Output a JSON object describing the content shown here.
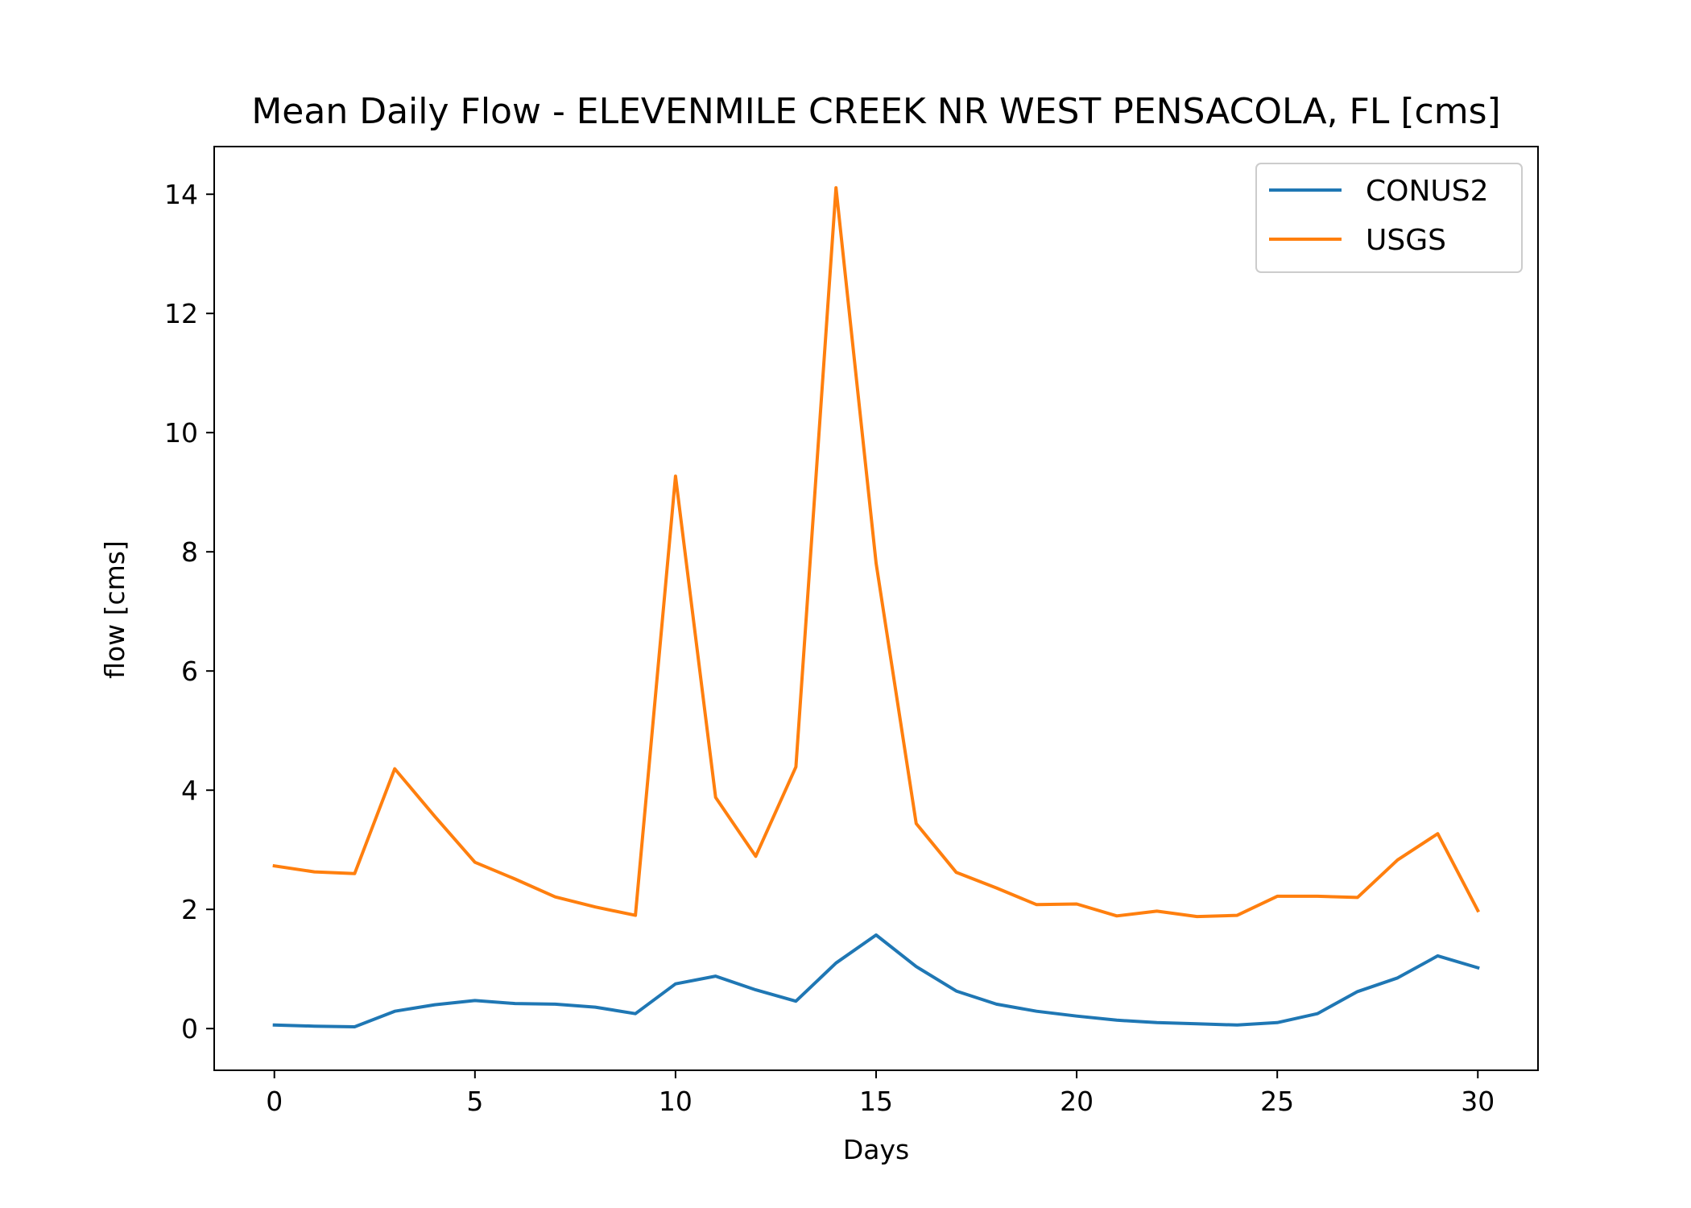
{
  "chart_data": {
    "type": "line",
    "title": "Mean Daily Flow - ELEVENMILE CREEK NR WEST PENSACOLA, FL [cms]",
    "xlabel": "Days",
    "ylabel": "flow [cms]",
    "xlim": [
      -1.5,
      31.5
    ],
    "ylim": [
      -0.7,
      14.8
    ],
    "x_ticks": [
      0,
      5,
      10,
      15,
      20,
      25,
      30
    ],
    "y_ticks": [
      0,
      2,
      4,
      6,
      8,
      10,
      12,
      14
    ],
    "x_tick_labels": [
      "0",
      "5",
      "10",
      "15",
      "20",
      "25",
      "30"
    ],
    "y_tick_labels": [
      "0",
      "2",
      "4",
      "6",
      "8",
      "10",
      "12",
      "14"
    ],
    "grid": false,
    "legend_position": "top-right",
    "x": [
      0,
      1,
      2,
      3,
      4,
      5,
      6,
      7,
      8,
      9,
      10,
      11,
      12,
      13,
      14,
      15,
      16,
      17,
      18,
      19,
      20,
      21,
      22,
      23,
      24,
      25,
      26,
      27,
      28,
      29,
      30
    ],
    "series": [
      {
        "name": "CONUS2",
        "color": "#1f77b4",
        "values": [
          0.06,
          0.04,
          0.03,
          0.29,
          0.4,
          0.47,
          0.42,
          0.41,
          0.36,
          0.25,
          0.75,
          0.88,
          0.65,
          0.46,
          1.1,
          1.57,
          1.04,
          0.63,
          0.41,
          0.29,
          0.21,
          0.14,
          0.1,
          0.08,
          0.06,
          0.1,
          0.25,
          0.62,
          0.85,
          1.22,
          1.02
        ]
      },
      {
        "name": "USGS",
        "color": "#ff7f0e",
        "values": [
          2.73,
          2.63,
          2.6,
          4.36,
          3.56,
          2.79,
          2.51,
          2.21,
          2.04,
          1.9,
          9.27,
          3.88,
          2.89,
          4.39,
          14.11,
          7.81,
          3.44,
          2.62,
          2.36,
          2.08,
          2.09,
          1.89,
          1.97,
          1.88,
          1.9,
          2.22,
          2.22,
          2.2,
          2.83,
          3.27,
          1.98
        ]
      }
    ]
  }
}
